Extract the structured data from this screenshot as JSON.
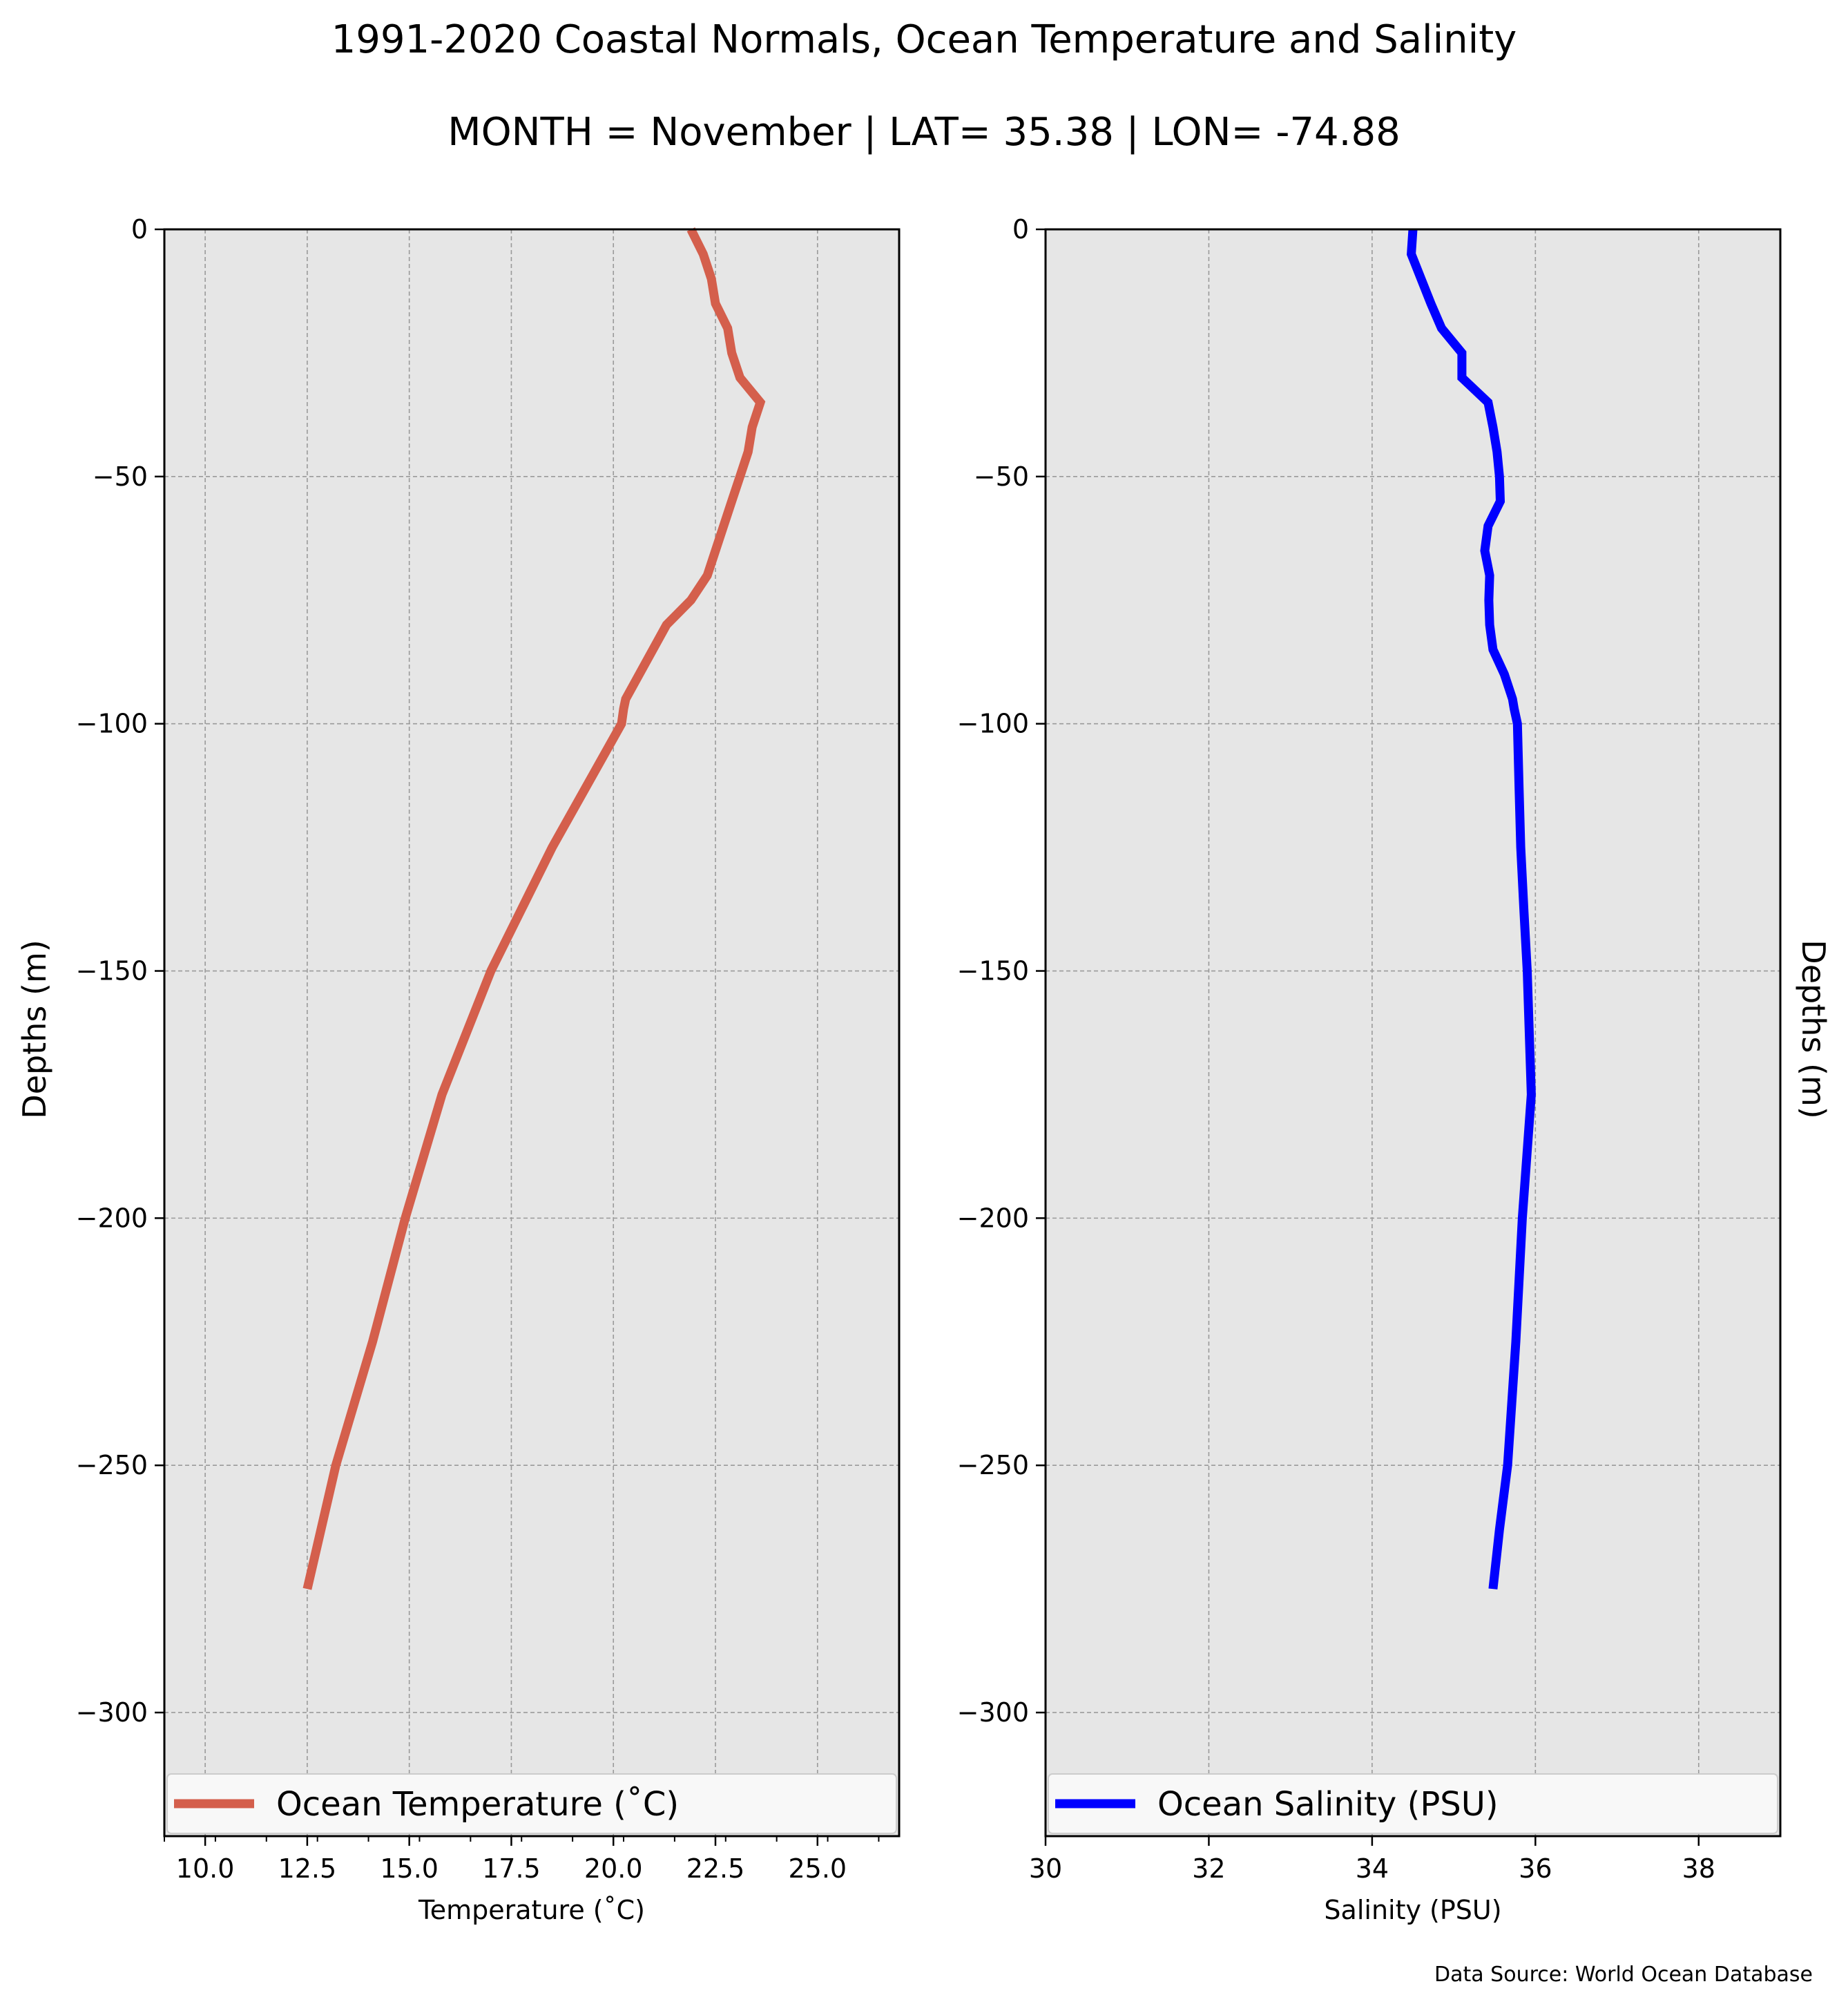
{
  "figure": {
    "title_line1": "1991-2020 Coastal Normals, Ocean Temperature and Salinity",
    "title_line2": "MONTH = November | LAT= 35.38 | LON= -74.88",
    "source_note": "Data Source: World Ocean Database"
  },
  "chart_data": [
    {
      "type": "line",
      "xlabel": "Temperature ($^\\circ$C)",
      "ylabel": "Depths (m)",
      "xlim": [
        9.0,
        27.0
      ],
      "ylim": [
        -325,
        0
      ],
      "xticks": [
        10.0,
        12.5,
        15.0,
        17.5,
        20.0,
        22.5,
        25.0
      ],
      "xtick_labels": [
        "10.0",
        "12.5",
        "15.0",
        "17.5",
        "20.0",
        "22.5",
        "25.0"
      ],
      "yticks": [
        0,
        -50,
        -100,
        -150,
        -200,
        -250,
        -300
      ],
      "ytick_labels": [
        "0",
        "−50",
        "−100",
        "−150",
        "−200",
        "−250",
        "−300"
      ],
      "grid": true,
      "legend_position": "bottom",
      "color": "#d45f4c",
      "series": [
        {
          "name": "Ocean Temperature ($^\\circ$C)",
          "x": [
            21.9,
            22.2,
            22.4,
            22.5,
            22.8,
            22.9,
            23.1,
            23.6,
            23.4,
            23.3,
            23.1,
            22.9,
            22.7,
            22.5,
            22.3,
            21.9,
            21.3,
            20.3,
            20.25,
            20.2,
            18.5,
            17.0,
            15.8,
            14.9,
            14.1,
            13.2,
            12.5
          ],
          "y": [
            0,
            -5,
            -10,
            -15,
            -20,
            -25,
            -30,
            -35,
            -40,
            -45,
            -50,
            -55,
            -60,
            -65,
            -70,
            -75,
            -80,
            -95,
            -97,
            -100,
            -125,
            -150,
            -175,
            -200,
            -225,
            -250,
            -275
          ]
        }
      ]
    },
    {
      "type": "line",
      "xlabel": "Salinity (PSU)",
      "ylabel": "Depths (m)",
      "xlim": [
        30,
        39
      ],
      "ylim": [
        -325,
        0
      ],
      "xticks": [
        30,
        32,
        34,
        36,
        38
      ],
      "xtick_labels": [
        "30",
        "32",
        "34",
        "36",
        "38"
      ],
      "yticks": [
        0,
        -50,
        -100,
        -150,
        -200,
        -250,
        -300
      ],
      "ytick_labels": [
        "0",
        "−50",
        "−100",
        "−150",
        "−200",
        "−250",
        "−300"
      ],
      "grid": true,
      "legend_position": "bottom",
      "color": "#0000ff",
      "series": [
        {
          "name": "Ocean Salinity (PSU)",
          "x": [
            34.5,
            34.48,
            34.6,
            34.72,
            34.85,
            35.1,
            35.1,
            35.42,
            35.48,
            35.53,
            35.56,
            35.57,
            35.42,
            35.38,
            35.44,
            35.43,
            35.44,
            35.48,
            35.62,
            35.72,
            35.74,
            35.78,
            35.8,
            35.82,
            35.86,
            35.9,
            35.95,
            35.84,
            35.76,
            35.66,
            35.56,
            35.48
          ],
          "y": [
            0,
            -5,
            -10,
            -15,
            -20,
            -25,
            -30,
            -35,
            -40,
            -45,
            -50,
            -55,
            -60,
            -65,
            -70,
            -75,
            -80,
            -85,
            -90,
            -95,
            -97,
            -100,
            -113,
            -125,
            -138,
            -150,
            -175,
            -200,
            -225,
            -250,
            -263,
            -275
          ]
        }
      ]
    }
  ]
}
